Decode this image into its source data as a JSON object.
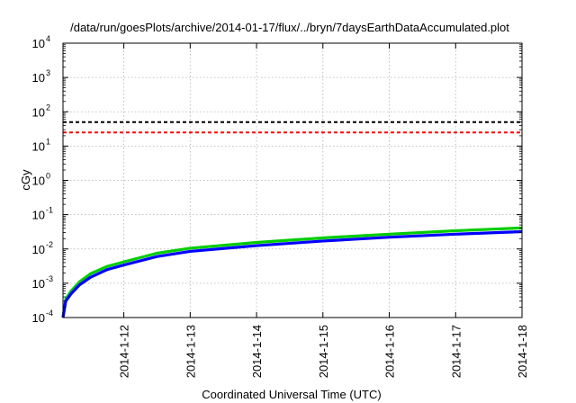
{
  "chart_data": {
    "type": "line",
    "title": "/data/run/goesPlots/archive/2014-01-17/flux/../bryn/7daysEarthDataAccumulated.plot",
    "xlabel": "Coordinated Universal Time (UTC)",
    "ylabel": "cGy",
    "yscale": "log",
    "ylim": [
      0.0001,
      10000
    ],
    "xlim": [
      "2014-01-11 02:00",
      "2014-01-18 00:00"
    ],
    "grid": true,
    "x_ticks": [
      "2014-1-12",
      "2014-1-13",
      "2014-1-14",
      "2014-1-15",
      "2014-1-16",
      "2014-1-17",
      "2014-1-18"
    ],
    "y_ticks": [
      {
        "base": "10",
        "exp": "-4"
      },
      {
        "base": "10",
        "exp": "-3"
      },
      {
        "base": "10",
        "exp": "-2"
      },
      {
        "base": "10",
        "exp": "-1"
      },
      {
        "base": "10",
        "exp": "0"
      },
      {
        "base": "10",
        "exp": "1"
      },
      {
        "base": "10",
        "exp": "2"
      },
      {
        "base": "10",
        "exp": "3"
      },
      {
        "base": "10",
        "exp": "4"
      }
    ],
    "series": [
      {
        "color": "#00cc00",
        "style": "solid",
        "x": [
          "2014-01-11 02:00",
          "2014-01-11 03:00",
          "2014-01-11 05:00",
          "2014-01-11 08:00",
          "2014-01-11 12:00",
          "2014-01-11 18:00",
          "2014-01-12 00:00",
          "2014-01-12 12:00",
          "2014-01-13 00:00",
          "2014-01-14 00:00",
          "2014-01-15 00:00",
          "2014-01-16 00:00",
          "2014-01-17 00:00",
          "2014-01-18 00:00"
        ],
        "y": [
          0.0001,
          0.00035,
          0.0006,
          0.0011,
          0.0019,
          0.0031,
          0.0042,
          0.0075,
          0.0105,
          0.0155,
          0.021,
          0.027,
          0.034,
          0.041
        ]
      },
      {
        "color": "#0000ff",
        "style": "solid",
        "x": [
          "2014-01-11 02:00",
          "2014-01-11 03:00",
          "2014-01-11 05:00",
          "2014-01-11 08:00",
          "2014-01-11 12:00",
          "2014-01-11 18:00",
          "2014-01-12 00:00",
          "2014-01-12 12:00",
          "2014-01-13 00:00",
          "2014-01-14 00:00",
          "2014-01-15 00:00",
          "2014-01-16 00:00",
          "2014-01-17 00:00",
          "2014-01-18 00:00"
        ],
        "y": [
          0.0001,
          0.0003,
          0.0005,
          0.0009,
          0.0015,
          0.0025,
          0.0034,
          0.006,
          0.0085,
          0.0125,
          0.017,
          0.022,
          0.027,
          0.032
        ]
      },
      {
        "color": "#000000",
        "style": "dashed",
        "x": [
          "2014-01-11 02:00",
          "2014-01-18 00:00"
        ],
        "y": [
          50,
          50
        ]
      },
      {
        "color": "#ff0000",
        "style": "dashed",
        "x": [
          "2014-01-11 02:00",
          "2014-01-18 00:00"
        ],
        "y": [
          25,
          25
        ]
      }
    ]
  }
}
